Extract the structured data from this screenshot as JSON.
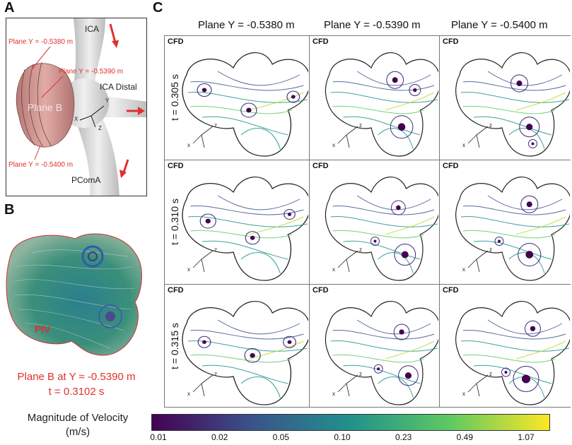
{
  "panels": {
    "a": "A",
    "b": "B",
    "c": "C"
  },
  "panel_a": {
    "ica": "ICA",
    "ica_distal": "ICA Distal",
    "pcoma": "PComA",
    "plane_b": "Plane B",
    "plane1": "Plane Y = -0.5380 m",
    "plane2": "Plane Y = -0.5390 m",
    "plane3": "Plane Y = -0.5400 m",
    "axis_y": "Y",
    "axis_x": "X",
    "axis_z": "Z"
  },
  "panel_b": {
    "piv": "PIV",
    "caption_line1": "Plane B at Y ≈ -0.5390 m",
    "caption_line2": "t = 0.3102 s"
  },
  "panel_c": {
    "columns": [
      "Plane Y = -0.5380 m",
      "Plane Y = -0.5390 m",
      "Plane Y = -0.5400 m"
    ],
    "rows": [
      "t = 0.305 s",
      "t = 0.310 s",
      "t = 0.315 s"
    ],
    "cell_label": "CFD",
    "axis_x": "x",
    "axis_z": "z"
  },
  "colorbar": {
    "title_line1": "Magnitude of Velocity",
    "title_line2": "(m/s)",
    "ticks": [
      "0.01",
      "0.02",
      "0.05",
      "0.10",
      "0.23",
      "0.49",
      "1.07"
    ],
    "colors": [
      "#440154",
      "#3b528b",
      "#21918c",
      "#5ec962",
      "#fde725"
    ]
  }
}
